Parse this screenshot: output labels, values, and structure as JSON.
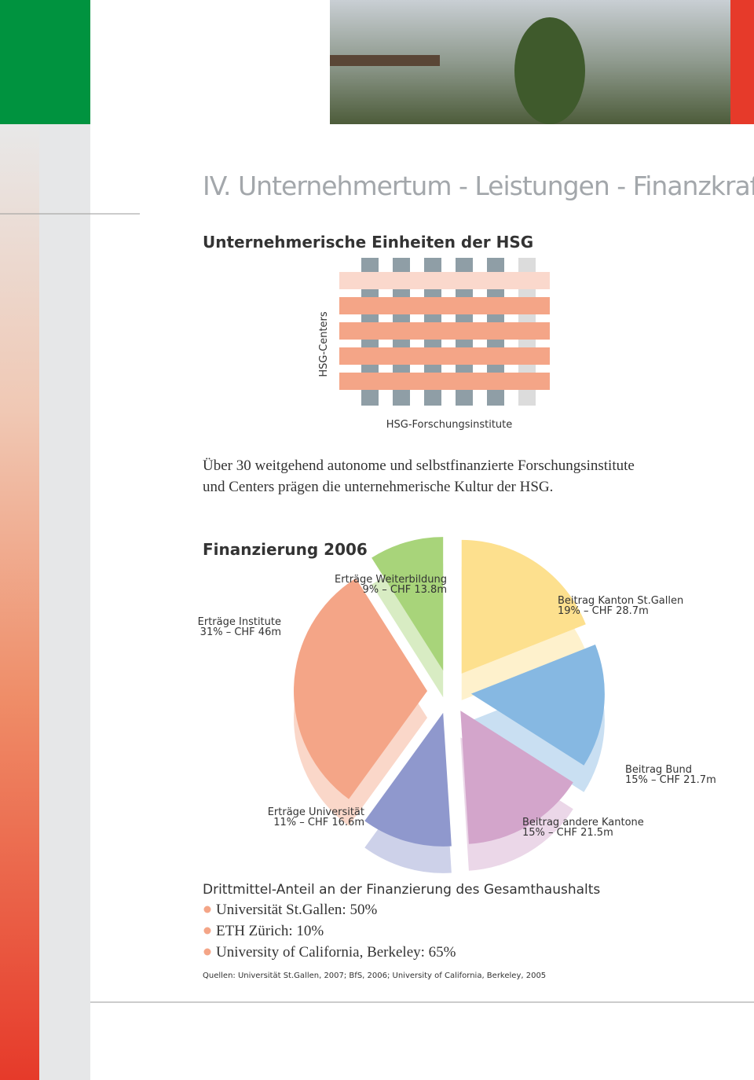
{
  "header": {
    "title": "IV. Unternehmertum - Leistungen - Finanzkraft"
  },
  "diagram": {
    "heading": "Unternehmerische Einheiten der HSG",
    "y_label": "HSG-Centers",
    "x_label": "HSG-Forschungsinstitute"
  },
  "intro": {
    "lines": [
      "Über 30 weitgehend autonome und selbstfinanzierte Forschungsinstitute",
      "und Centers prägen die unternehmerische Kultur der HSG."
    ]
  },
  "chart_data": {
    "type": "pie",
    "title": "Finanzierung 2006",
    "categories": [
      "Beitrag Kanton St.Gallen",
      "Beitrag Bund",
      "Beitrag andere Kantone",
      "Erträge Universität",
      "Erträge Institute",
      "Erträge Weiterbildung"
    ],
    "values": [
      19,
      15,
      15,
      11,
      31,
      9
    ],
    "value_labels": [
      "19% – CHF 28.7m",
      "15% – CHF 21.7m",
      "15% – CHF 21.5m",
      "11% – CHF 16.6m",
      "31% – CHF 46m",
      "9% – CHF 13.8m"
    ],
    "colors": [
      "#fde08e",
      "#86b8e2",
      "#d3a5cb",
      "#8f98cd",
      "#f4a587",
      "#a8d47a"
    ]
  },
  "third_party": {
    "heading": "Drittmittel-Anteil an der Finanzierung des Gesamthaushalts",
    "items": [
      "Universität St.Gallen: 50%",
      "ETH Zürich: 10%",
      "University of California, Berkeley: 65%"
    ],
    "source": "Quellen: Universität St.Gallen, 2007; BfS, 2006; University of California, Berkeley, 2005"
  }
}
